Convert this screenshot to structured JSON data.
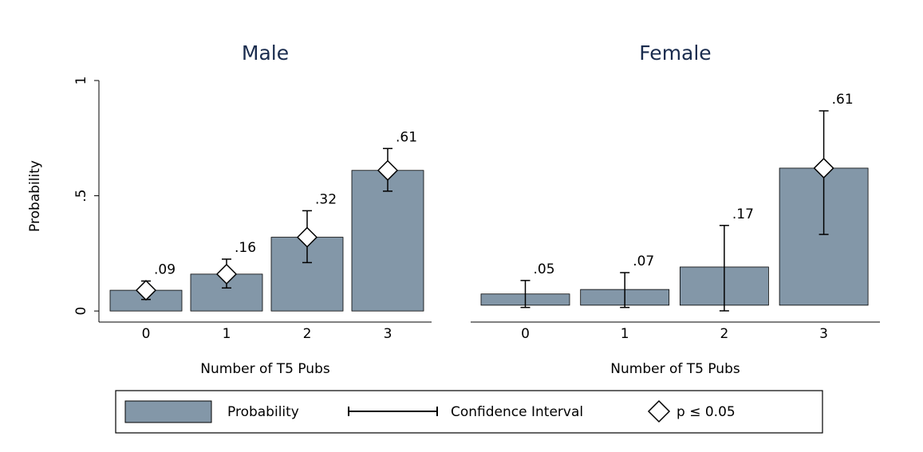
{
  "chart_data": [
    {
      "type": "bar",
      "title": "Male",
      "ylabel": "Probability",
      "xlabel": "Number of T5 Pubs",
      "categories": [
        "0",
        "1",
        "2",
        "3"
      ],
      "values": [
        0.09,
        0.16,
        0.32,
        0.61
      ],
      "value_labels": [
        ".09",
        ".16",
        ".32",
        ".61"
      ],
      "ci_low": [
        0.05,
        0.1,
        0.21,
        0.52
      ],
      "ci_high": [
        0.13,
        0.225,
        0.435,
        0.705
      ],
      "significant": [
        true,
        true,
        true,
        true
      ],
      "color": "#8397a8",
      "ylim": [
        -0.048,
        1
      ],
      "yticks": [
        0,
        {
          "value": 0.5,
          "label": ".5"
        },
        1
      ]
    },
    {
      "type": "bar",
      "title": "Female",
      "xlabel": "Number of T5 Pubs",
      "categories": [
        "0",
        "1",
        "2",
        "3"
      ],
      "values": [
        0.05,
        0.07,
        0.17,
        0.61
      ],
      "value_labels": [
        ".05",
        ".07",
        ".17",
        ".61"
      ],
      "ci_low": [
        -0.01,
        -0.01,
        -0.025,
        0.315
      ],
      "ci_high": [
        0.11,
        0.145,
        0.355,
        0.865
      ],
      "significant": [
        false,
        false,
        false,
        true
      ],
      "color": "#8397a8",
      "ylim": [
        -0.075,
        1.0
      ]
    }
  ],
  "legend": {
    "items": [
      "Probability",
      "Confidence Interval",
      "p  ≤ 0.05"
    ]
  }
}
